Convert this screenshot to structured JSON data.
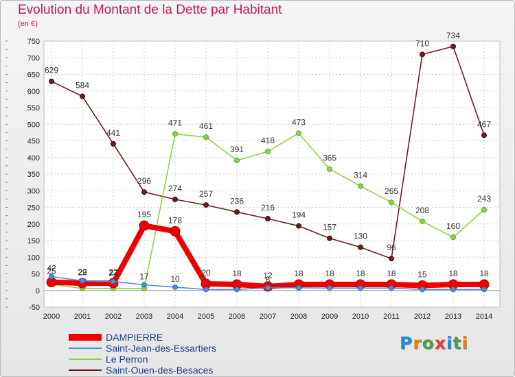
{
  "title": "Evolution du Montant de la Dette par Habitant",
  "unit": "(en €)",
  "logo": {
    "text": "Proxiti",
    "letter_colors": [
      "#1e88e5",
      "#f57c00",
      "#43a047",
      "#e53935",
      "#1e88e5",
      "#43a047",
      "#f57c00"
    ]
  },
  "chart_data": {
    "type": "line",
    "title": "Evolution du Montant de la Dette par Habitant",
    "ylabel": "(en €)",
    "ylim": [
      -50,
      750
    ],
    "yticks": [
      -50,
      0,
      50,
      100,
      150,
      200,
      250,
      300,
      350,
      400,
      450,
      500,
      550,
      600,
      650,
      700,
      750
    ],
    "x": [
      "2000",
      "2001",
      "2002",
      "2003",
      "2004",
      "2005",
      "2006",
      "2007",
      "2008",
      "2009",
      "2010",
      "2011",
      "2012",
      "2013",
      "2014"
    ],
    "grid": true,
    "legend_position": "bottom-left",
    "series": [
      {
        "name": "DAMPIERRE",
        "color": "#ee0000",
        "values": [
          25,
          22,
          22,
          195,
          178,
          20,
          18,
          12,
          18,
          18,
          18,
          18,
          15,
          18,
          18
        ],
        "labels": [
          "25",
          "22",
          "22",
          "195",
          "178",
          "20",
          "18",
          "12",
          "18",
          "18",
          "18",
          "18",
          "15",
          "18",
          "18"
        ]
      },
      {
        "name": "Saint-Jean-des-Essartiers",
        "color": "#4a90d9",
        "values": [
          42,
          29,
          27,
          17,
          10,
          3,
          3,
          8,
          8,
          7,
          7,
          7,
          3,
          3,
          3
        ],
        "labels": [
          "42",
          "29",
          "27",
          "17",
          "10",
          "",
          "",
          "8",
          "",
          "",
          "",
          "",
          "",
          "",
          ""
        ]
      },
      {
        "name": "Le Perron",
        "color": "#8ed24a",
        "values": [
          18,
          6,
          6,
          6,
          471,
          461,
          391,
          418,
          473,
          365,
          314,
          265,
          208,
          160,
          243
        ],
        "labels": [
          "",
          "",
          "",
          "",
          "471",
          "461",
          "391",
          "418",
          "473",
          "365",
          "314",
          "265",
          "208",
          "160",
          "243"
        ]
      },
      {
        "name": "Saint-Ouen-des-Besaces",
        "color": "#6b1e1e",
        "values": [
          629,
          584,
          441,
          296,
          274,
          257,
          236,
          216,
          194,
          157,
          130,
          96,
          710,
          734,
          467
        ],
        "labels": [
          "629",
          "584",
          "441",
          "296",
          "274",
          "257",
          "236",
          "216",
          "194",
          "157",
          "130",
          "96",
          "710",
          "734",
          "467"
        ]
      }
    ]
  }
}
